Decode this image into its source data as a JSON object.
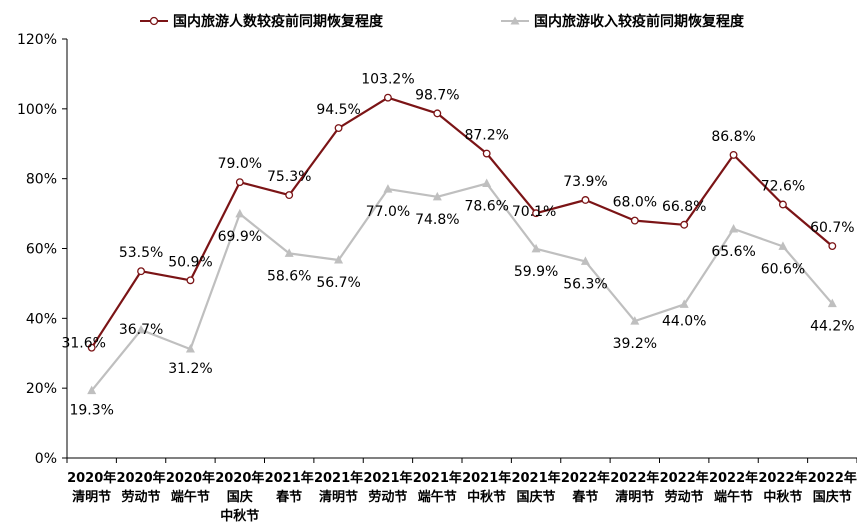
{
  "chart_data": {
    "type": "line",
    "categories": [
      [
        "2020年",
        "清明节"
      ],
      [
        "2020年",
        "劳动节"
      ],
      [
        "2020年",
        "端午节"
      ],
      [
        "2020年",
        "国庆",
        "中秋节"
      ],
      [
        "2021年",
        "春节"
      ],
      [
        "2021年",
        "清明节"
      ],
      [
        "2021年",
        "劳动节"
      ],
      [
        "2021年",
        "端午节"
      ],
      [
        "2021年",
        "中秋节"
      ],
      [
        "2021年",
        "国庆节"
      ],
      [
        "2022年",
        "春节"
      ],
      [
        "2022年",
        "清明节"
      ],
      [
        "2022年",
        "劳动节"
      ],
      [
        "2022年",
        "端午节"
      ],
      [
        "2022年",
        "中秋节"
      ],
      [
        "2022年",
        "国庆节"
      ]
    ],
    "series": [
      {
        "name": "国内旅游人数较疫前同期恢复程度",
        "color": "#7b1416",
        "marker": "circle-open",
        "values": [
          31.6,
          53.5,
          50.9,
          79.0,
          75.3,
          94.5,
          103.2,
          98.7,
          87.2,
          70.1,
          73.9,
          68.0,
          66.8,
          86.8,
          72.6,
          60.7
        ],
        "labels": [
          "31.6%",
          "53.5%",
          "50.9%",
          "79.0%",
          "75.3%",
          "94.5%",
          "103.2%",
          "98.7%",
          "87.2%",
          "70.1%",
          "73.9%",
          "68.0%",
          "66.8%",
          "86.8%",
          "72.6%",
          "60.7%"
        ]
      },
      {
        "name": "国内旅游收入较疫前同期恢复程度",
        "color": "#bfbfbf",
        "marker": "triangle",
        "values": [
          19.3,
          36.7,
          31.2,
          69.9,
          58.6,
          56.7,
          77.0,
          74.8,
          78.6,
          59.9,
          56.3,
          39.2,
          44.0,
          65.6,
          60.6,
          44.2
        ],
        "labels": [
          "19.3%",
          "36.7%",
          "31.2%",
          "69.9%",
          "58.6%",
          "56.7%",
          "77.0%",
          "74.8%",
          "78.6%",
          "59.9%",
          "56.3%",
          "39.2%",
          "44.0%",
          "65.6%",
          "60.6%",
          "44.2%"
        ]
      }
    ],
    "yticks": [
      "0%",
      "20%",
      "40%",
      "60%",
      "80%",
      "100%",
      "120%"
    ],
    "ylim": [
      0,
      120
    ],
    "grid": false,
    "legend_position": "top"
  }
}
